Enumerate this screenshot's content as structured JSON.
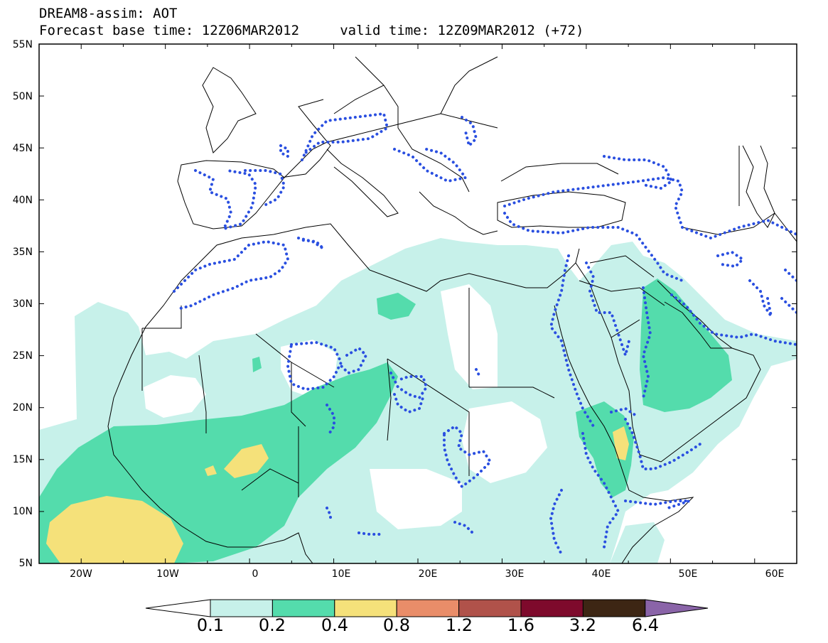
{
  "title": {
    "line1": "DREAM8-assim: AOT",
    "line2": "Forecast base time: 12Z06MAR2012     valid time: 12Z09MAR2012 (+72)"
  },
  "map": {
    "lon_range": [
      -25,
      65
    ],
    "lat_range": [
      5,
      55
    ],
    "lat_ticks": [
      "55N",
      "50N",
      "45N",
      "40N",
      "35N",
      "30N",
      "25N",
      "20N",
      "15N",
      "10N",
      "5N"
    ],
    "lon_ticks": [
      "20W",
      "10W",
      "0",
      "10E",
      "20E",
      "30E",
      "40E",
      "50E",
      "60E"
    ],
    "dotted_contour_color": "#2a4fe0"
  },
  "colorbar": {
    "levels": [
      "0.1",
      "0.2",
      "0.4",
      "0.8",
      "1.2",
      "1.6",
      "3.2",
      "6.4"
    ],
    "colors": [
      "#ffffff",
      "#c7f1ea",
      "#54dcac",
      "#f5e17a",
      "#e98d69",
      "#b0524a",
      "#7e0a2c",
      "#3d2614",
      "#8a64a8"
    ]
  }
}
